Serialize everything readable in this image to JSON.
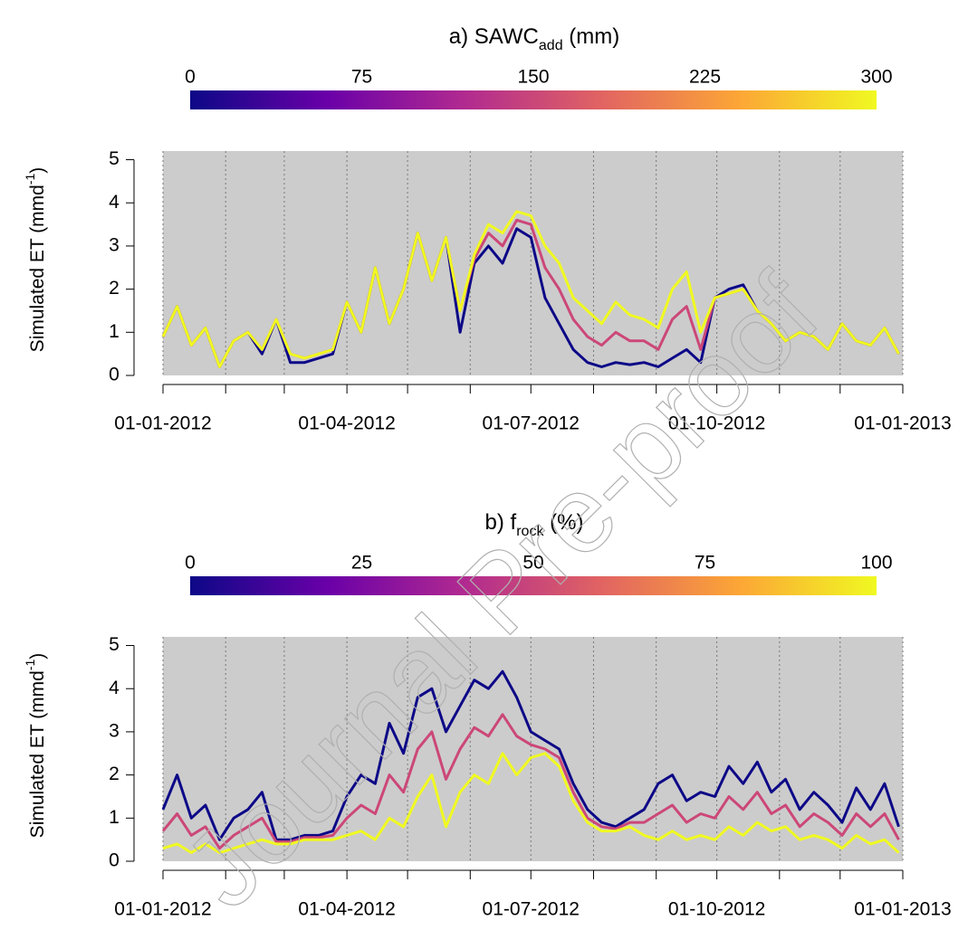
{
  "chart_data": [
    {
      "type": "line",
      "title": {
        "prefix": "a)  SAWC",
        "sub": "add",
        "suffix": " (mm)"
      },
      "ylabel": {
        "main": "Simulated ET (mmd",
        "sup": "-1",
        "end": ")"
      },
      "colorbar": {
        "lim": [
          0,
          300
        ],
        "ticks": [
          0,
          75,
          150,
          225,
          300
        ],
        "colors": [
          "#0d0887",
          "#6a00a8",
          "#b12a90",
          "#e16462",
          "#fca636",
          "#f0f921"
        ]
      },
      "x": [
        0,
        7,
        14,
        21,
        28,
        35,
        42,
        49,
        56,
        63,
        70,
        77,
        84,
        91,
        98,
        105,
        112,
        119,
        126,
        133,
        140,
        147,
        154,
        161,
        168,
        175,
        182,
        189,
        196,
        203,
        210,
        217,
        224,
        231,
        238,
        245,
        252,
        259,
        266,
        273,
        280,
        287,
        294,
        301,
        308,
        315,
        322,
        329,
        336,
        343,
        350,
        357,
        364
      ],
      "xlim": [
        0,
        366
      ],
      "xticks": [
        {
          "value": 0,
          "label": "01-01-2012"
        },
        {
          "value": 91,
          "label": "01-04-2012"
        },
        {
          "value": 182,
          "label": "01-07-2012"
        },
        {
          "value": 274,
          "label": "01-10-2012"
        },
        {
          "value": 366,
          "label": "01-01-2013"
        }
      ],
      "xgrid": [
        31,
        60,
        121,
        152,
        213,
        244,
        305,
        335
      ],
      "ylim": [
        0,
        5.2
      ],
      "yticks": [
        0,
        1,
        2,
        3,
        4,
        5
      ],
      "series": [
        {
          "color": "#0d0887",
          "values": [
            0.9,
            1.6,
            0.7,
            1.1,
            0.2,
            0.8,
            1.0,
            0.5,
            1.3,
            0.3,
            0.3,
            0.4,
            0.5,
            1.7,
            1.0,
            2.5,
            1.2,
            2.0,
            3.3,
            2.2,
            3.2,
            1.0,
            2.6,
            3.0,
            2.6,
            3.4,
            3.2,
            1.8,
            1.2,
            0.6,
            0.3,
            0.2,
            0.3,
            0.25,
            0.3,
            0.2,
            0.4,
            0.6,
            0.3,
            1.8,
            2.0,
            2.1,
            1.5,
            1.2,
            0.8,
            1.0,
            0.9,
            0.6,
            1.2,
            0.8,
            0.7,
            1.1,
            0.5
          ]
        },
        {
          "color": "#cc4778",
          "values": [
            0.9,
            1.6,
            0.7,
            1.1,
            0.2,
            0.8,
            1.0,
            0.6,
            1.3,
            0.5,
            0.4,
            0.5,
            0.6,
            1.7,
            1.0,
            2.5,
            1.2,
            2.0,
            3.3,
            2.2,
            3.2,
            1.5,
            2.7,
            3.3,
            3.0,
            3.6,
            3.5,
            2.5,
            2.0,
            1.3,
            0.9,
            0.7,
            1.0,
            0.8,
            0.8,
            0.6,
            1.3,
            1.6,
            0.6,
            1.8,
            1.9,
            2.0,
            1.5,
            1.2,
            0.8,
            1.0,
            0.9,
            0.6,
            1.2,
            0.8,
            0.7,
            1.1,
            0.5
          ]
        },
        {
          "color": "#f0f921",
          "values": [
            0.9,
            1.6,
            0.7,
            1.1,
            0.2,
            0.8,
            1.0,
            0.6,
            1.3,
            0.5,
            0.4,
            0.5,
            0.6,
            1.7,
            1.0,
            2.5,
            1.2,
            2.0,
            3.3,
            2.2,
            3.2,
            1.5,
            2.8,
            3.5,
            3.3,
            3.8,
            3.7,
            3.0,
            2.6,
            1.8,
            1.5,
            1.2,
            1.7,
            1.4,
            1.3,
            1.1,
            2.0,
            2.4,
            1.0,
            1.8,
            1.9,
            2.0,
            1.5,
            1.2,
            0.8,
            1.0,
            0.9,
            0.6,
            1.2,
            0.8,
            0.7,
            1.1,
            0.5
          ]
        }
      ]
    },
    {
      "type": "line",
      "title": {
        "prefix": "b)  f",
        "sub": "rock",
        "suffix": " (%)"
      },
      "ylabel": {
        "main": "Simulated ET (mmd",
        "sup": "-1",
        "end": ")"
      },
      "colorbar": {
        "lim": [
          0,
          100
        ],
        "ticks": [
          0,
          25,
          50,
          75,
          100
        ],
        "colors": [
          "#0d0887",
          "#6a00a8",
          "#b12a90",
          "#e16462",
          "#fca636",
          "#f0f921"
        ]
      },
      "x": [
        0,
        7,
        14,
        21,
        28,
        35,
        42,
        49,
        56,
        63,
        70,
        77,
        84,
        91,
        98,
        105,
        112,
        119,
        126,
        133,
        140,
        147,
        154,
        161,
        168,
        175,
        182,
        189,
        196,
        203,
        210,
        217,
        224,
        231,
        238,
        245,
        252,
        259,
        266,
        273,
        280,
        287,
        294,
        301,
        308,
        315,
        322,
        329,
        336,
        343,
        350,
        357,
        364
      ],
      "xlim": [
        0,
        366
      ],
      "xticks": [
        {
          "value": 0,
          "label": "01-01-2012"
        },
        {
          "value": 91,
          "label": "01-04-2012"
        },
        {
          "value": 182,
          "label": "01-07-2012"
        },
        {
          "value": 274,
          "label": "01-10-2012"
        },
        {
          "value": 366,
          "label": "01-01-2013"
        }
      ],
      "xgrid": [
        31,
        60,
        121,
        152,
        213,
        244,
        305,
        335
      ],
      "ylim": [
        0,
        5.2
      ],
      "yticks": [
        0,
        1,
        2,
        3,
        4,
        5
      ],
      "series": [
        {
          "color": "#0d0887",
          "values": [
            1.2,
            2.0,
            1.0,
            1.3,
            0.5,
            1.0,
            1.2,
            1.6,
            0.5,
            0.5,
            0.6,
            0.6,
            0.7,
            1.5,
            2.0,
            1.8,
            3.2,
            2.5,
            3.8,
            4.0,
            3.0,
            3.6,
            4.2,
            4.0,
            4.4,
            3.8,
            3.0,
            2.8,
            2.6,
            1.8,
            1.2,
            0.9,
            0.8,
            1.0,
            1.2,
            1.8,
            2.0,
            1.4,
            1.6,
            1.5,
            2.2,
            1.8,
            2.3,
            1.6,
            1.9,
            1.2,
            1.6,
            1.3,
            0.9,
            1.7,
            1.2,
            1.8,
            0.8
          ]
        },
        {
          "color": "#cc4778",
          "values": [
            0.7,
            1.1,
            0.6,
            0.8,
            0.3,
            0.6,
            0.8,
            1.0,
            0.45,
            0.45,
            0.55,
            0.55,
            0.6,
            1.0,
            1.3,
            1.1,
            2.0,
            1.6,
            2.6,
            3.0,
            1.9,
            2.6,
            3.1,
            2.9,
            3.4,
            2.9,
            2.7,
            2.6,
            2.4,
            1.6,
            1.0,
            0.8,
            0.75,
            0.9,
            0.9,
            1.1,
            1.3,
            0.9,
            1.1,
            1.0,
            1.5,
            1.2,
            1.6,
            1.1,
            1.3,
            0.8,
            1.1,
            0.9,
            0.6,
            1.1,
            0.8,
            1.1,
            0.5
          ]
        },
        {
          "color": "#f0f921",
          "values": [
            0.3,
            0.4,
            0.2,
            0.4,
            0.2,
            0.3,
            0.4,
            0.5,
            0.4,
            0.4,
            0.5,
            0.5,
            0.5,
            0.6,
            0.7,
            0.5,
            1.0,
            0.8,
            1.5,
            2.0,
            0.8,
            1.6,
            2.0,
            1.8,
            2.5,
            2.0,
            2.4,
            2.5,
            2.2,
            1.4,
            0.9,
            0.7,
            0.7,
            0.8,
            0.6,
            0.5,
            0.7,
            0.5,
            0.6,
            0.5,
            0.8,
            0.6,
            0.9,
            0.7,
            0.8,
            0.5,
            0.6,
            0.5,
            0.3,
            0.6,
            0.4,
            0.5,
            0.2
          ]
        }
      ]
    }
  ],
  "watermark": "Journal Pre-proof"
}
